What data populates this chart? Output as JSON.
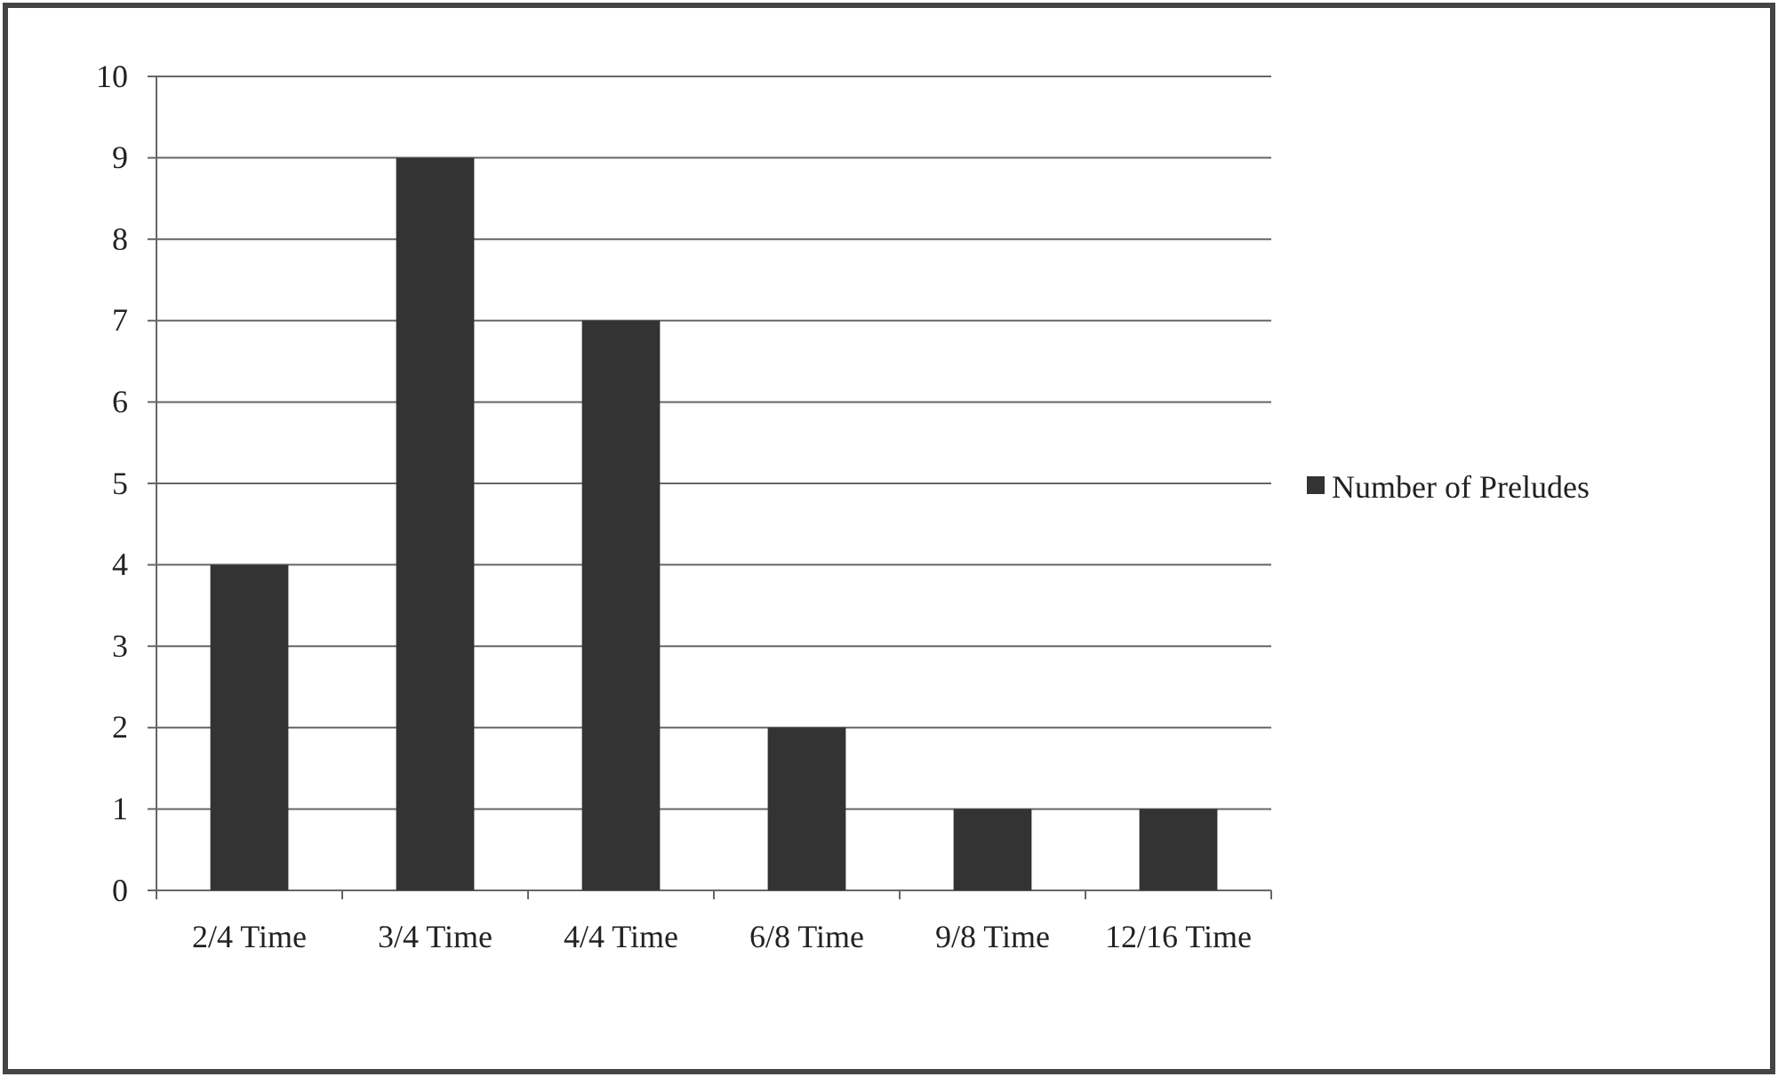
{
  "chart_data": {
    "type": "bar",
    "categories": [
      "2/4 Time",
      "3/4 Time",
      "4/4 Time",
      "6/8 Time",
      "9/8 Time",
      "12/16 Time"
    ],
    "series": [
      {
        "name": "Number of Preludes",
        "color": "#333333",
        "values": [
          4,
          9,
          7,
          2,
          1,
          1
        ]
      }
    ],
    "ylim": [
      0,
      10
    ],
    "yticks": [
      0,
      1,
      2,
      3,
      4,
      5,
      6,
      7,
      8,
      9,
      10
    ],
    "grid": "y",
    "legend": "right"
  }
}
